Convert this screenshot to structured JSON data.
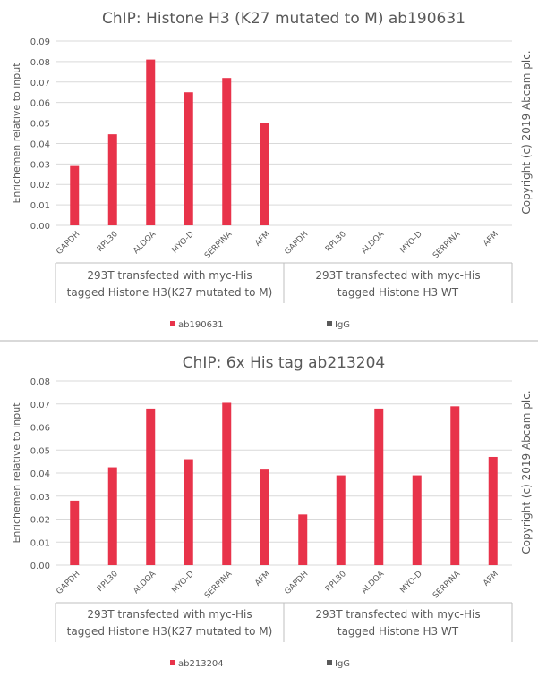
{
  "copyright": "Copyright (c) 2019 Abcam plc.",
  "chart_data": [
    {
      "type": "bar",
      "title": "ChIP: Histone H3 (K27 mutated to M) ab190631",
      "ylabel": "Enrichemen relative to input",
      "ylim": [
        0,
        0.09
      ],
      "yticks": [
        "0.00",
        "0.01",
        "0.02",
        "0.03",
        "0.04",
        "0.05",
        "0.06",
        "0.07",
        "0.08",
        "0.09"
      ],
      "grid": true,
      "legend_position": "bottom",
      "categories": [
        "GAPDH",
        "RPL30",
        "ALDOA",
        "MYO-D",
        "SERPINA",
        "AFM",
        "GAPDH",
        "RPL30",
        "ALDOA",
        "MYO-D",
        "SERPINA",
        "AFM"
      ],
      "groups": [
        {
          "label_lines": [
            "293T transfected with myc-His",
            "tagged Histone H3(K27 mutated to M)"
          ]
        },
        {
          "label_lines": [
            "293T transfected with myc-His",
            "tagged Histone H3 WT"
          ]
        }
      ],
      "series": [
        {
          "name": "ab190631",
          "color": "#e8334a",
          "values": [
            0.029,
            0.0445,
            0.081,
            0.065,
            0.072,
            0.05,
            null,
            null,
            null,
            null,
            null,
            null
          ]
        },
        {
          "name": "IgG",
          "color": "#595959",
          "values": [
            null,
            null,
            null,
            null,
            null,
            null,
            null,
            null,
            null,
            null,
            null,
            null
          ]
        }
      ]
    },
    {
      "type": "bar",
      "title": "ChIP: 6x His tag ab213204",
      "ylabel": "Enrichemen relative to input",
      "ylim": [
        0,
        0.08
      ],
      "yticks": [
        "0.00",
        "0.01",
        "0.02",
        "0.03",
        "0.04",
        "0.05",
        "0.06",
        "0.07",
        "0.08"
      ],
      "grid": true,
      "legend_position": "bottom",
      "categories": [
        "GAPDH",
        "RPL30",
        "ALDOA",
        "MYO-D",
        "SERPINA",
        "AFM",
        "GAPDH",
        "RPL30",
        "ALDOA",
        "MYO-D",
        "SERPINA",
        "AFM"
      ],
      "groups": [
        {
          "label_lines": [
            "293T transfected with myc-His",
            "tagged Histone H3(K27 mutated to M)"
          ]
        },
        {
          "label_lines": [
            "293T transfected with myc-His",
            "tagged Histone H3 WT"
          ]
        }
      ],
      "series": [
        {
          "name": "ab213204",
          "color": "#e8334a",
          "values": [
            0.028,
            0.0425,
            0.068,
            0.046,
            0.0705,
            0.0415,
            0.022,
            0.039,
            0.068,
            0.039,
            0.069,
            0.047
          ]
        },
        {
          "name": "IgG",
          "color": "#595959",
          "values": [
            null,
            null,
            null,
            null,
            null,
            null,
            null,
            null,
            null,
            null,
            null,
            null
          ]
        }
      ]
    }
  ]
}
